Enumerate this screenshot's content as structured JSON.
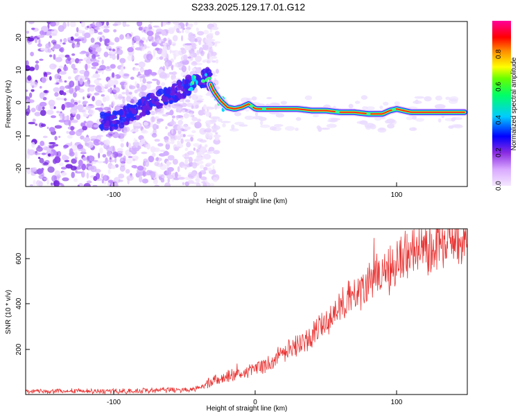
{
  "title": "S233.2025.129.17.01.G12",
  "chart_data": [
    {
      "type": "heatmap",
      "xlabel": "Height of straight line (km)",
      "ylabel": "Frequency (Hz)",
      "xlim": [
        -163,
        150
      ],
      "ylim": [
        -25,
        25
      ],
      "xticks": [
        "-100",
        "0",
        "100"
      ],
      "xtick_values": [
        -100,
        0,
        100
      ],
      "yticks": [
        "20",
        "10",
        "0",
        "-10",
        "-20"
      ],
      "ytick_values": [
        20,
        10,
        0,
        -10,
        -20
      ],
      "ridge": {
        "x": [
          -100,
          -85,
          -70,
          -55,
          -45,
          -38,
          -34,
          -30,
          -25,
          -20,
          -15,
          -10,
          -5,
          0,
          10,
          20,
          30,
          40,
          50,
          60,
          70,
          80,
          85,
          90,
          95,
          100,
          110,
          120,
          130,
          140,
          148
        ],
        "y": [
          -5,
          -2,
          1,
          4,
          6,
          7.5,
          8,
          4,
          1,
          -1,
          -1.5,
          -1,
          0,
          -1.5,
          -1.5,
          -1.5,
          -1.5,
          -2,
          -2,
          -2.5,
          -2.5,
          -3,
          -3,
          -3,
          -2,
          -1.5,
          -2.5,
          -2.5,
          -2.5,
          -2.5,
          -2.5
        ]
      },
      "noise_region_x": [
        -163,
        -35
      ],
      "colorbar": {
        "label": "Normalized spectral amplitude",
        "ticks": [
          "0.0",
          "0.2",
          "0.4",
          "0.6",
          "0.8"
        ],
        "tick_values": [
          0,
          0.2,
          0.4,
          0.6,
          0.8
        ],
        "range": [
          0,
          1
        ]
      }
    },
    {
      "type": "line",
      "xlabel": "Height of straight line (km)",
      "ylabel": "SNR (10 * v/v)",
      "xlim": [
        -163,
        150
      ],
      "ylim": [
        0,
        730
      ],
      "xticks": [
        "-100",
        "0",
        "100"
      ],
      "xtick_values": [
        -100,
        0,
        100
      ],
      "yticks": [
        "200",
        "400",
        "600"
      ],
      "ytick_values": [
        200,
        400,
        600
      ],
      "color": "#e8302f",
      "series": [
        {
          "name": "SNR",
          "x": [
            -163,
            -140,
            -120,
            -100,
            -80,
            -60,
            -45,
            -40,
            -35,
            -30,
            -20,
            -10,
            0,
            10,
            20,
            30,
            40,
            50,
            60,
            70,
            80,
            90,
            100,
            110,
            120,
            130,
            140,
            150
          ],
          "values": [
            15,
            15,
            15,
            15,
            16,
            20,
            22,
            30,
            45,
            60,
            80,
            90,
            110,
            140,
            180,
            220,
            260,
            320,
            390,
            450,
            500,
            540,
            580,
            620,
            640,
            660,
            670,
            675
          ]
        }
      ]
    }
  ]
}
